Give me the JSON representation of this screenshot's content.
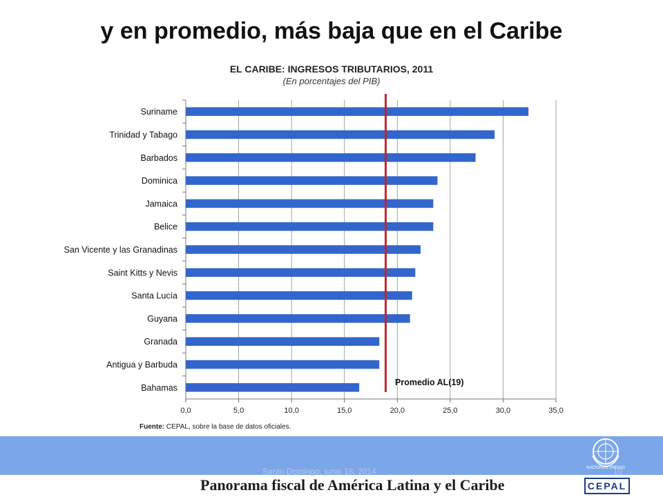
{
  "slide": {
    "title": "y en promedio, más baja que en el Caribe",
    "footer_title": "Panorama fiscal de América Latina y el Caribe",
    "footer_meta": "Santo Domingo, junio 18, 2014",
    "page_number": "10",
    "logo_text": "CEPAL",
    "un_label": "NACIONES UNIDAS"
  },
  "source": {
    "label": "Fuente:",
    "text": "CEPAL, sobre la base de datos oficiales."
  },
  "colors": {
    "bar": "#3366cc",
    "reference_line": "#c0272d",
    "footer_band": "#7ba6ea"
  },
  "chart_data": {
    "type": "bar",
    "orientation": "horizontal",
    "title": "EL CARIBE: INGRESOS TRIBUTARIOS, 2011",
    "subtitle": "(En porcentajes del PIB)",
    "categories": [
      "Suriname",
      "Trinidad y Tabago",
      "Barbados",
      "Dominica",
      "Jamaica",
      "Belice",
      "San Vicente y las Granadinas",
      "Saint Kitts y Nevis",
      "Santa Lucía",
      "Guyana",
      "Granada",
      "Antigua y Barbuda",
      "Bahamas"
    ],
    "values": [
      32.4,
      29.2,
      27.4,
      23.8,
      23.4,
      23.4,
      22.2,
      21.7,
      21.4,
      21.2,
      18.3,
      18.3,
      16.4
    ],
    "xlim": [
      0,
      35
    ],
    "xticks": [
      "0,0",
      "5,0",
      "10,0",
      "15,0",
      "20,0",
      "25,0",
      "30,0",
      "35,0"
    ],
    "grid": true,
    "reference_line": {
      "label": "Promedio AL(19)",
      "value": 18.9
    }
  }
}
